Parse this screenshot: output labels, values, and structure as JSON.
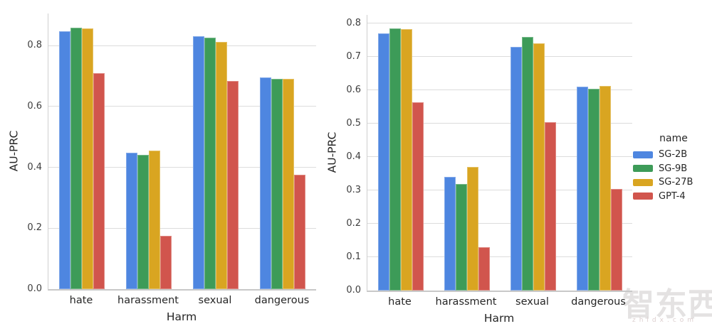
{
  "legend": {
    "title": "name",
    "entries": [
      {
        "label": "SG-2B",
        "color": "#4e86e0"
      },
      {
        "label": "SG-9B",
        "color": "#3d9b58"
      },
      {
        "label": "SG-27B",
        "color": "#d9a521"
      },
      {
        "label": "GPT-4",
        "color": "#d1554d"
      }
    ]
  },
  "watermark": {
    "logo": "智东西",
    "subtext": "zhidx.com"
  },
  "chart_data": [
    {
      "id": "left",
      "type": "bar",
      "title": "",
      "xlabel": "Harm",
      "ylabel": "AU-PRC",
      "categories": [
        "hate",
        "harassment",
        "sexual",
        "dangerous"
      ],
      "series": [
        {
          "name": "SG-2B",
          "color": "#4e86e0",
          "values": [
            0.846,
            0.449,
            0.83,
            0.694
          ]
        },
        {
          "name": "SG-9B",
          "color": "#3d9b58",
          "values": [
            0.859,
            0.44,
            0.826,
            0.69
          ]
        },
        {
          "name": "SG-27B",
          "color": "#d9a521",
          "values": [
            0.856,
            0.455,
            0.812,
            0.69
          ]
        },
        {
          "name": "GPT-4",
          "color": "#d1554d",
          "values": [
            0.708,
            0.175,
            0.683,
            0.375
          ]
        }
      ],
      "ylim": [
        0,
        0.905
      ],
      "yticks": [
        0.0,
        0.2,
        0.4,
        0.6,
        0.8
      ],
      "ytick_labels": [
        "0.0",
        "0.2",
        "0.4",
        "0.6",
        "0.8"
      ],
      "grid": "horizontal",
      "legend_position": "none"
    },
    {
      "id": "right",
      "type": "bar",
      "title": "",
      "xlabel": "Harm",
      "ylabel": "AU-PRC",
      "categories": [
        "hate",
        "harassment",
        "sexual",
        "dangerous"
      ],
      "series": [
        {
          "name": "SG-2B",
          "color": "#4e86e0",
          "values": [
            0.77,
            0.341,
            0.729,
            0.611
          ]
        },
        {
          "name": "SG-9B",
          "color": "#3d9b58",
          "values": [
            0.785,
            0.32,
            0.76,
            0.603
          ]
        },
        {
          "name": "SG-27B",
          "color": "#d9a521",
          "values": [
            0.782,
            0.371,
            0.74,
            0.612
          ]
        },
        {
          "name": "GPT-4",
          "color": "#d1554d",
          "values": [
            0.563,
            0.13,
            0.504,
            0.305
          ]
        }
      ],
      "ylim": [
        0,
        0.825
      ],
      "yticks": [
        0.0,
        0.1,
        0.2,
        0.3,
        0.4,
        0.5,
        0.6,
        0.7,
        0.8
      ],
      "ytick_labels": [
        "0.0",
        "0.1",
        "0.2",
        "0.3",
        "0.4",
        "0.5",
        "0.6",
        "0.7",
        "0.8"
      ],
      "grid": "horizontal",
      "legend_position": "right"
    }
  ]
}
